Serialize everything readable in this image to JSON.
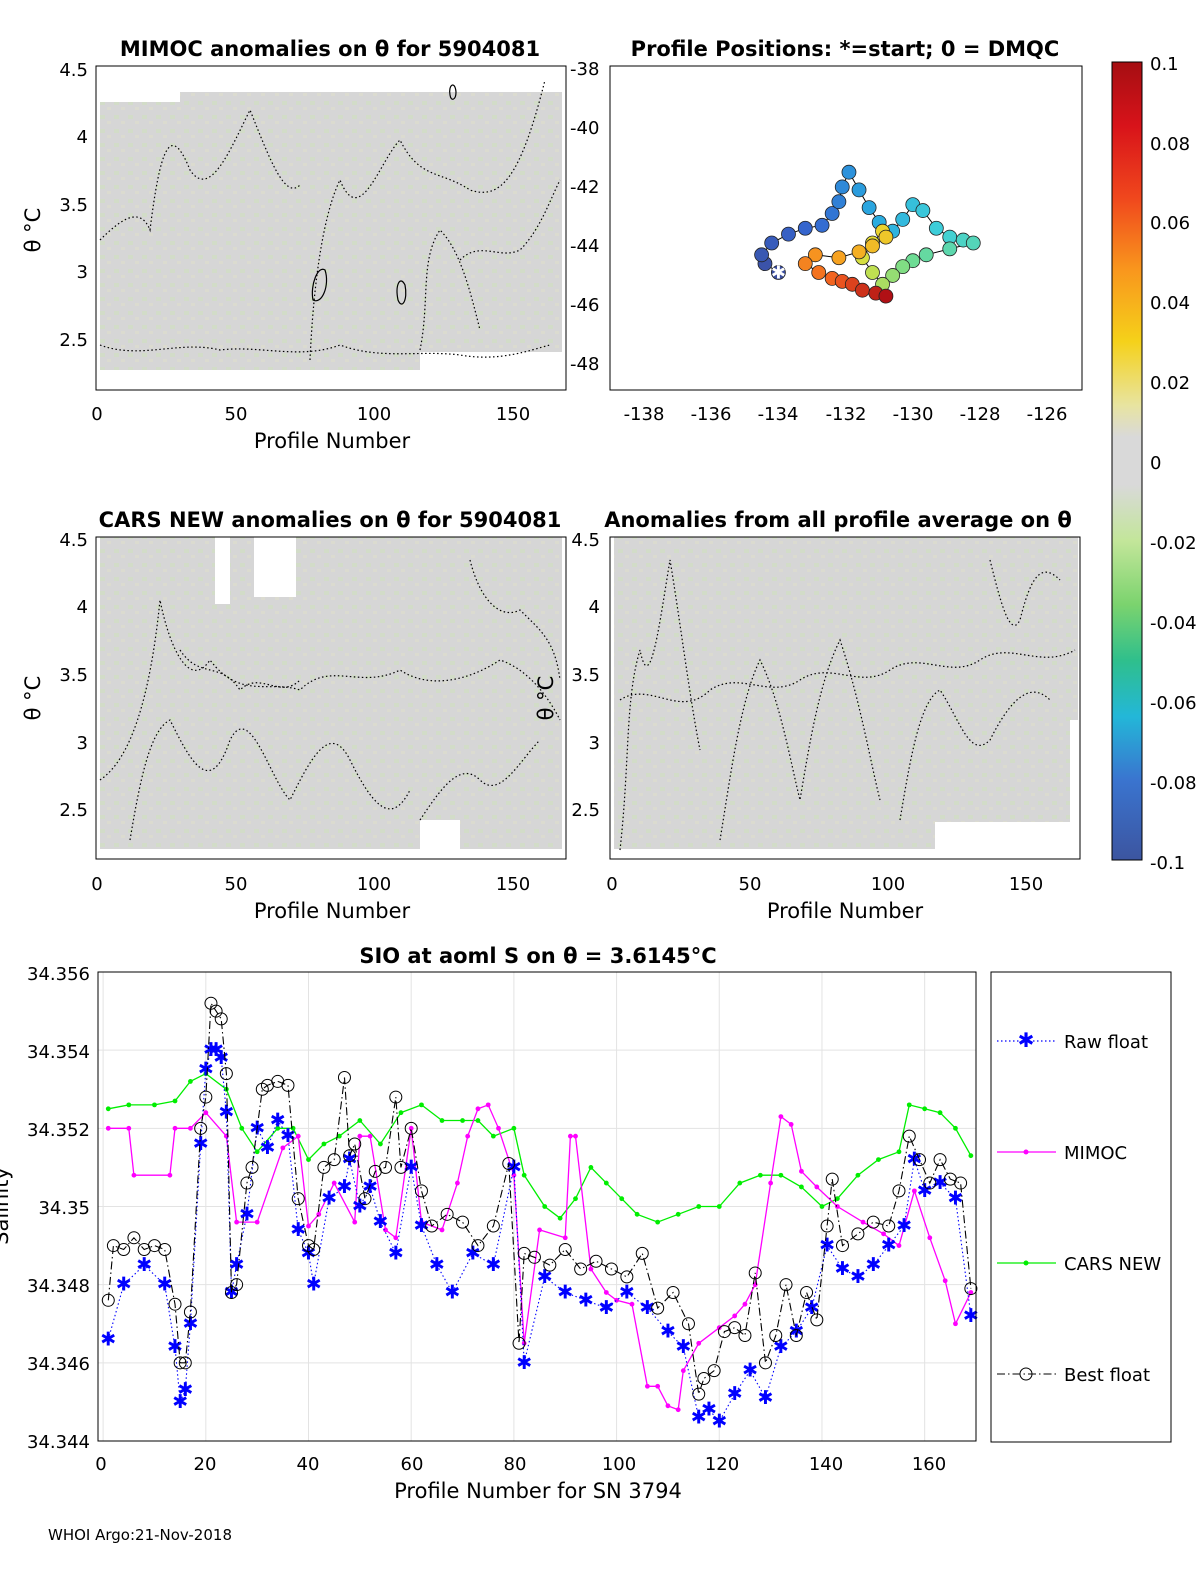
{
  "footer": "WHOI Argo:21-Nov-2018",
  "panels": {
    "mimoc": {
      "title": "MIMOC anomalies on θ  for 5904081",
      "xlabel": "Profile Number",
      "ylabel": "θ °C",
      "xticks": [
        "0",
        "50",
        "100",
        "150"
      ],
      "yticks": [
        "2.5",
        "3",
        "3.5",
        "4",
        "4.5"
      ]
    },
    "positions": {
      "title": "Profile Positions: *=start; 0 = DMQC",
      "xticks": [
        "-138",
        "-136",
        "-134",
        "-132",
        "-130",
        "-128",
        "-126"
      ],
      "yticks": [
        "-38",
        "-40",
        "-42",
        "-44",
        "-46",
        "-48"
      ]
    },
    "cars": {
      "title": "CARS NEW anomalies on θ for 5904081",
      "xlabel": "Profile Number",
      "ylabel": "θ °C",
      "xticks": [
        "0",
        "50",
        "100",
        "150"
      ],
      "yticks": [
        "2.5",
        "3",
        "3.5",
        "4",
        "4.5"
      ]
    },
    "allavg": {
      "title": "Anomalies from all profile average on θ",
      "xlabel": "Profile Number",
      "ylabel": "θ °C",
      "xticks": [
        "0",
        "50",
        "100",
        "150"
      ],
      "yticks": [
        "2.5",
        "3",
        "3.5",
        "4",
        "4.5"
      ]
    },
    "colorbar": {
      "ticks": [
        "0.1",
        "0.08",
        "0.06",
        "0.04",
        "0.02",
        "0",
        "-0.02",
        "-0.04",
        "-0.06",
        "-0.08",
        "-0.1"
      ]
    },
    "salinity": {
      "title": "SIO at aoml S on θ = 3.6145°C",
      "xlabel": "Profile Number for SN 3794",
      "ylabel": "Salinity",
      "xticks": [
        "0",
        "20",
        "40",
        "60",
        "80",
        "100",
        "120",
        "140",
        "160"
      ],
      "yticks": [
        "34.344",
        "34.346",
        "34.348",
        "34.35",
        "34.352",
        "34.354",
        "34.356"
      ]
    }
  },
  "chart_data": [
    {
      "type": "heatmap",
      "title": "MIMOC anomalies on θ  for 5904081",
      "xlabel": "Profile Number",
      "ylabel": "θ °C",
      "xlim": [
        0,
        170
      ],
      "ylim": [
        2.15,
        4.55
      ],
      "colormap_range": [
        -0.1,
        0.1
      ]
    },
    {
      "type": "scatter",
      "title": "Profile Positions: *=start; 0 = DMQC",
      "xlim": [
        -139,
        -125
      ],
      "ylim": [
        -49,
        -38
      ],
      "track_lon": [
        -134.0,
        -134.4,
        -134.5,
        -134.2,
        -133.7,
        -133.2,
        -132.7,
        -132.4,
        -132.2,
        -132.1,
        -131.9,
        -131.6,
        -131.3,
        -131.0,
        -130.6,
        -130.3,
        -130.0,
        -129.7,
        -129.3,
        -128.9,
        -128.5,
        -128.2,
        -128.9,
        -129.6,
        -130.0,
        -130.3,
        -130.6,
        -130.9,
        -131.2,
        -131.5,
        -131.2,
        -130.9,
        -130.8,
        -131.2,
        -131.6,
        -132.2,
        -132.9,
        -133.2,
        -132.8,
        -132.4,
        -132.1,
        -131.8,
        -131.5,
        -131.1,
        -130.8
      ],
      "track_lat": [
        -45.0,
        -44.7,
        -44.4,
        -44.0,
        -43.7,
        -43.5,
        -43.4,
        -43.0,
        -42.6,
        -42.1,
        -41.6,
        -42.2,
        -42.8,
        -43.3,
        -43.6,
        -43.2,
        -42.7,
        -42.9,
        -43.5,
        -43.8,
        -43.9,
        -44.0,
        -44.2,
        -44.4,
        -44.6,
        -44.8,
        -45.1,
        -45.4,
        -45.0,
        -44.5,
        -44.0,
        -43.6,
        -43.8,
        -44.1,
        -44.3,
        -44.5,
        -44.4,
        -44.7,
        -45.0,
        -45.2,
        -45.3,
        -45.4,
        -45.6,
        -45.7,
        -45.8
      ],
      "start_marker": [
        -134.0,
        -45.0
      ]
    },
    {
      "type": "heatmap",
      "title": "CARS NEW anomalies on θ for 5904081",
      "xlabel": "Profile Number",
      "ylabel": "θ °C",
      "xlim": [
        0,
        170
      ],
      "ylim": [
        2.1,
        4.55
      ],
      "colormap_range": [
        -0.1,
        0.1
      ]
    },
    {
      "type": "heatmap",
      "title": "Anomalies from all profile average on θ",
      "xlabel": "Profile Number",
      "ylabel": "θ °C",
      "xlim": [
        0,
        170
      ],
      "ylim": [
        2.1,
        4.55
      ],
      "colormap_range": [
        -0.1,
        0.1
      ]
    },
    {
      "type": "line",
      "title": "SIO at aoml S on θ = 3.6145°C",
      "xlabel": "Profile Number for SN 3794",
      "ylabel": "Salinity",
      "xlim": [
        -1,
        170
      ],
      "ylim": [
        34.344,
        34.356
      ],
      "grid": true,
      "legend_placement": "right",
      "series": [
        {
          "name": "Raw float",
          "color": "#0000ff",
          "marker": "asterisk",
          "line": "dotted",
          "x": [
            1,
            4,
            8,
            12,
            14,
            15,
            16,
            17,
            19,
            20,
            21,
            22,
            23,
            24,
            25,
            26,
            28,
            30,
            32,
            34,
            36,
            38,
            40,
            41,
            44,
            47,
            48,
            50,
            52,
            54,
            57,
            60,
            62,
            65,
            68,
            72,
            76,
            80,
            82,
            86,
            90,
            94,
            98,
            102,
            106,
            110,
            113,
            116,
            118,
            120,
            123,
            126,
            129,
            132,
            135,
            138,
            141,
            144,
            147,
            150,
            153,
            156,
            158,
            160,
            163,
            166,
            169
          ],
          "y": [
            34.3466,
            34.348,
            34.3485,
            34.348,
            34.3464,
            34.345,
            34.3453,
            34.347,
            34.3516,
            34.3535,
            34.354,
            34.354,
            34.3538,
            34.3524,
            34.3478,
            34.3485,
            34.3498,
            34.352,
            34.3515,
            34.3522,
            34.3518,
            34.3494,
            34.3488,
            34.348,
            34.3502,
            34.3505,
            34.3512,
            34.35,
            34.3505,
            34.3496,
            34.3488,
            34.351,
            34.3495,
            34.3485,
            34.3478,
            34.3488,
            34.3485,
            34.351,
            34.346,
            34.3482,
            34.3478,
            34.3476,
            34.3474,
            34.3478,
            34.3474,
            34.3468,
            34.3464,
            34.3446,
            34.3448,
            34.3445,
            34.3452,
            34.3458,
            34.3451,
            34.3464,
            34.3468,
            34.3474,
            34.349,
            34.3484,
            34.3482,
            34.3485,
            34.349,
            34.3495,
            34.3512,
            34.3504,
            34.3506,
            34.3502,
            34.3472
          ]
        },
        {
          "name": "MIMOC",
          "color": "#ff00ff",
          "marker": "dot",
          "line": "solid",
          "x": [
            1,
            5,
            6,
            13,
            14,
            17,
            20,
            24,
            26,
            30,
            35,
            38,
            40,
            42,
            45,
            49,
            50,
            52,
            55,
            57,
            60,
            62,
            66,
            69,
            71,
            73,
            75,
            77,
            80,
            82,
            85,
            90,
            91,
            92,
            95,
            98,
            100,
            103,
            106,
            108,
            110,
            112,
            113,
            116,
            120,
            123,
            125,
            127,
            130,
            132,
            134,
            136,
            139,
            143,
            148,
            152,
            155,
            158,
            161,
            164,
            166,
            169
          ],
          "y": [
            34.352,
            34.352,
            34.3508,
            34.3508,
            34.352,
            34.352,
            34.3524,
            34.3518,
            34.3496,
            34.3496,
            34.3515,
            34.3518,
            34.3495,
            34.3498,
            34.3506,
            34.3496,
            34.3518,
            34.3518,
            34.3494,
            34.3492,
            34.352,
            34.3496,
            34.3494,
            34.3506,
            34.3518,
            34.3525,
            34.3526,
            34.352,
            34.3508,
            34.3465,
            34.3494,
            34.3492,
            34.3518,
            34.3518,
            34.3484,
            34.3478,
            34.3476,
            34.3475,
            34.3454,
            34.3454,
            34.3449,
            34.3448,
            34.3458,
            34.3465,
            34.3469,
            34.3472,
            34.3475,
            34.348,
            34.3506,
            34.3523,
            34.3521,
            34.3509,
            34.3505,
            34.35,
            34.3496,
            34.3493,
            34.349,
            34.3504,
            34.3492,
            34.3481,
            34.347,
            34.3478
          ]
        },
        {
          "name": "CARS NEW",
          "color": "#00ee00",
          "marker": "dot",
          "line": "solid",
          "x": [
            1,
            5,
            10,
            14,
            17,
            20,
            24,
            27,
            30,
            34,
            37,
            40,
            43,
            46,
            50,
            54,
            58,
            62,
            66,
            70,
            73,
            76,
            80,
            82,
            86,
            89,
            92,
            95,
            98,
            101,
            104,
            108,
            112,
            116,
            120,
            124,
            128,
            132,
            136,
            140,
            143,
            147,
            151,
            155,
            157,
            160,
            163,
            166,
            169
          ],
          "y": [
            34.3525,
            34.3526,
            34.3526,
            34.3527,
            34.3532,
            34.3534,
            34.353,
            34.352,
            34.3514,
            34.352,
            34.352,
            34.3512,
            34.3516,
            34.3518,
            34.3522,
            34.3516,
            34.3524,
            34.3526,
            34.3522,
            34.3522,
            34.3522,
            34.3518,
            34.352,
            34.3508,
            34.35,
            34.3497,
            34.3502,
            34.351,
            34.3506,
            34.3502,
            34.3498,
            34.3496,
            34.3498,
            34.35,
            34.35,
            34.3506,
            34.3508,
            34.3508,
            34.3505,
            34.35,
            34.3502,
            34.3508,
            34.3512,
            34.3514,
            34.3526,
            34.3525,
            34.3524,
            34.352,
            34.3513
          ]
        },
        {
          "name": "Best float",
          "color": "#000000",
          "marker": "circle",
          "line": "dashdot",
          "x": [
            1,
            2,
            4,
            6,
            8,
            10,
            12,
            14,
            15,
            16,
            17,
            19,
            20,
            21,
            22,
            23,
            24,
            25,
            26,
            28,
            29,
            31,
            32,
            34,
            36,
            38,
            40,
            41,
            43,
            45,
            47,
            48,
            49,
            51,
            53,
            55,
            57,
            58,
            60,
            62,
            64,
            67,
            70,
            73,
            76,
            79,
            81,
            82,
            84,
            87,
            90,
            93,
            96,
            99,
            102,
            105,
            108,
            111,
            114,
            116,
            117,
            119,
            121,
            123,
            125,
            127,
            129,
            131,
            133,
            135,
            137,
            139,
            141,
            142,
            144,
            147,
            150,
            153,
            155,
            157,
            159,
            161,
            163,
            165,
            167,
            169
          ],
          "y": [
            34.3476,
            34.349,
            34.3489,
            34.3492,
            34.3489,
            34.349,
            34.3489,
            34.3475,
            34.346,
            34.346,
            34.3473,
            34.352,
            34.3528,
            34.3552,
            34.355,
            34.3548,
            34.3534,
            34.3478,
            34.348,
            34.3506,
            34.351,
            34.353,
            34.3531,
            34.3532,
            34.3531,
            34.3502,
            34.349,
            34.3489,
            34.351,
            34.3512,
            34.3533,
            34.3513,
            34.3516,
            34.3502,
            34.3509,
            34.351,
            34.3528,
            34.351,
            34.352,
            34.3504,
            34.3495,
            34.3498,
            34.3496,
            34.349,
            34.3495,
            34.3511,
            34.3465,
            34.3488,
            34.3487,
            34.3485,
            34.3489,
            34.3484,
            34.3486,
            34.3484,
            34.3482,
            34.3488,
            34.3474,
            34.3478,
            34.347,
            34.3452,
            34.3456,
            34.3458,
            34.3468,
            34.3469,
            34.3467,
            34.3483,
            34.346,
            34.3467,
            34.348,
            34.3467,
            34.3478,
            34.3471,
            34.3495,
            34.3507,
            34.349,
            34.3493,
            34.3496,
            34.3495,
            34.3504,
            34.3518,
            34.3512,
            34.3506,
            34.3512,
            34.3507,
            34.3506,
            34.3479
          ]
        }
      ]
    }
  ]
}
